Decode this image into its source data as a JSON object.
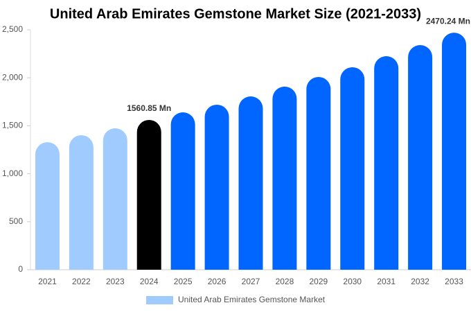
{
  "chart_data": {
    "type": "bar",
    "title": "United Arab Emirates Gemstone Market Size (2021-2033)",
    "categories": [
      "2021",
      "2022",
      "2023",
      "2024",
      "2025",
      "2026",
      "2027",
      "2028",
      "2029",
      "2030",
      "2031",
      "2032",
      "2033"
    ],
    "series": [
      {
        "name": "United Arab Emirates Gemstone Market",
        "color": "#a0cbff",
        "colors": [
          "#a0cbff",
          "#a0cbff",
          "#a0cbff",
          "#000000",
          "#0066ff",
          "#0066ff",
          "#0066ff",
          "#0066ff",
          "#0066ff",
          "#0066ff",
          "#0066ff",
          "#0066ff",
          "#0066ff"
        ],
        "values": [
          1329,
          1402,
          1474,
          1560.85,
          1640,
          1720,
          1806,
          1908,
          2009,
          2110,
          2225,
          2341,
          2470.24
        ],
        "value_labels": [
          null,
          null,
          null,
          "1560.85 Mn",
          null,
          null,
          null,
          null,
          null,
          null,
          null,
          null,
          "2470.24 Mn"
        ]
      }
    ],
    "ylim": [
      0,
      2500
    ],
    "yticks": [
      0,
      500,
      {
        "value": 1000,
        "label": "1,000"
      },
      {
        "value": 1500,
        "label": "1,500"
      },
      {
        "value": 2000,
        "label": "2,000"
      },
      {
        "value": 2500,
        "label": "2,500"
      }
    ],
    "grid": false
  }
}
